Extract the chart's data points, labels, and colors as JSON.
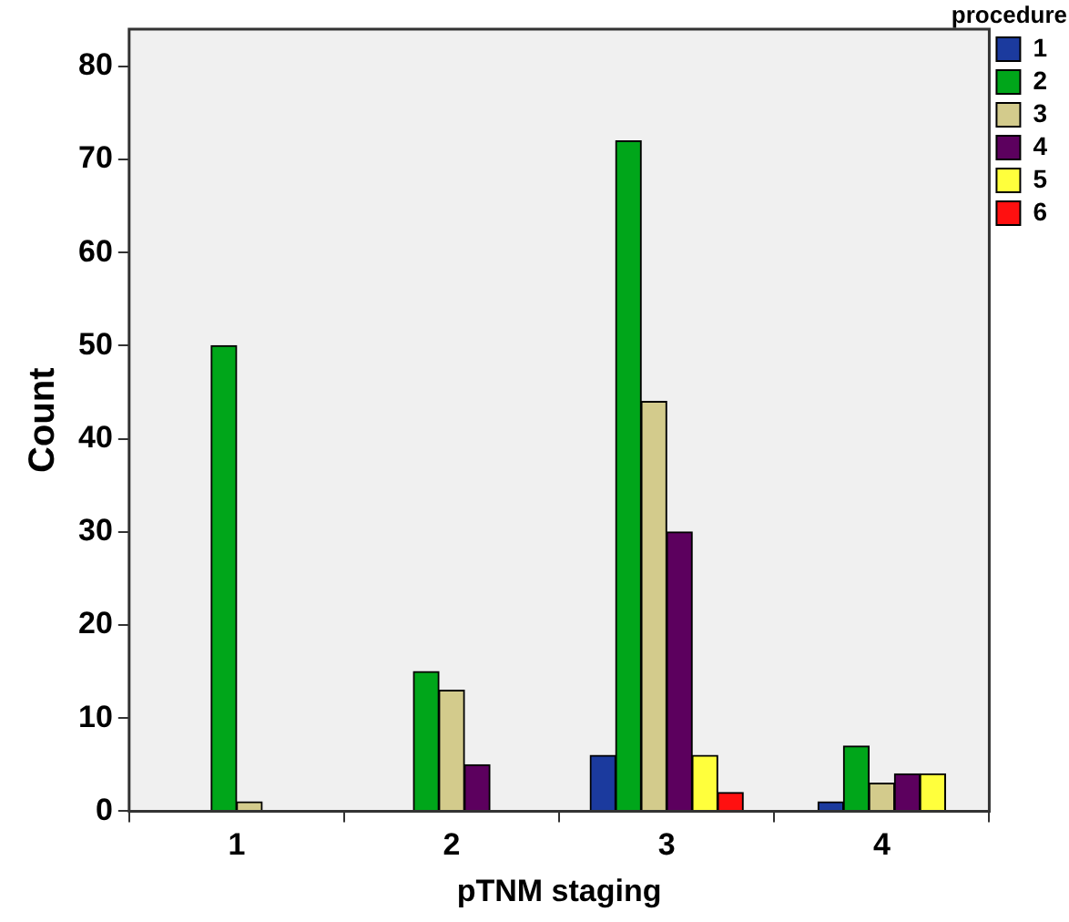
{
  "chart_data": {
    "type": "bar",
    "xlabel": "pTNM staging",
    "ylabel": "Count",
    "legend_title": "procedure",
    "legend": "right",
    "grid": false,
    "categories": [
      "1",
      "2",
      "3",
      "4"
    ],
    "ylim": [
      0,
      84
    ],
    "yticks": [
      0,
      10,
      20,
      30,
      40,
      50,
      60,
      70,
      80
    ],
    "series": [
      {
        "name": "1",
        "color": "#1b3a9e",
        "values": [
          null,
          null,
          6,
          1
        ]
      },
      {
        "name": "2",
        "color": "#00a61a",
        "values": [
          50,
          15,
          72,
          7
        ]
      },
      {
        "name": "3",
        "color": "#d3cb8c",
        "values": [
          1,
          13,
          44,
          3
        ]
      },
      {
        "name": "4",
        "color": "#5c005e",
        "values": [
          null,
          5,
          30,
          4
        ]
      },
      {
        "name": "5",
        "color": "#ffff3c",
        "values": [
          null,
          null,
          6,
          4
        ]
      },
      {
        "name": "6",
        "color": "#ff1010",
        "values": [
          null,
          null,
          2,
          null
        ]
      }
    ]
  }
}
